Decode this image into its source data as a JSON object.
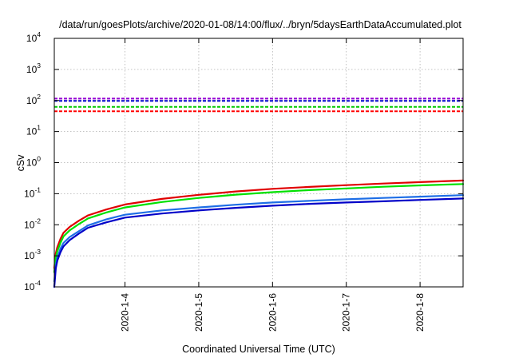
{
  "chart_data": {
    "type": "line",
    "title": "/data/run/goesPlots/archive/2020-01-08/14:00/flux/../bryn/5daysEarthDataAccumulated.plot",
    "xlabel": "Coordinated Universal Time (UTC)",
    "ylabel": "cSv",
    "y_scale": "log",
    "ylim": [
      0.0001,
      10000
    ],
    "y_ticks": [
      {
        "value": 0.0001,
        "base": "10",
        "exp": "-4"
      },
      {
        "value": 0.001,
        "base": "10",
        "exp": "-3"
      },
      {
        "value": 0.01,
        "base": "10",
        "exp": "-2"
      },
      {
        "value": 0.1,
        "base": "10",
        "exp": "-1"
      },
      {
        "value": 1,
        "base": "10",
        "exp": "0"
      },
      {
        "value": 10,
        "base": "10",
        "exp": "1"
      },
      {
        "value": 100,
        "base": "10",
        "exp": "2"
      },
      {
        "value": 1000,
        "base": "10",
        "exp": "3"
      },
      {
        "value": 10000,
        "base": "10",
        "exp": "4"
      }
    ],
    "xlim": [
      "2020-01-03 01:00",
      "2020-01-08 14:00"
    ],
    "x_ticks": [
      {
        "value": "2020-01-04 00:00",
        "label": "2020-1-4"
      },
      {
        "value": "2020-01-05 00:00",
        "label": "2020-1-5"
      },
      {
        "value": "2020-01-06 00:00",
        "label": "2020-1-6"
      },
      {
        "value": "2020-01-07 00:00",
        "label": "2020-1-7"
      },
      {
        "value": "2020-01-08 00:00",
        "label": "2020-1-8"
      }
    ],
    "grid": true,
    "series": [
      {
        "color": "#9400d3",
        "style": "dashed",
        "x": [
          "2020-01-03 01:00",
          "2020-01-08 14:00"
        ],
        "y": [
          115,
          115
        ]
      },
      {
        "color": "#0000cd",
        "style": "dashed",
        "x": [
          "2020-01-03 01:00",
          "2020-01-08 14:00"
        ],
        "y": [
          97,
          97
        ]
      },
      {
        "color": "#00c800",
        "style": "dashed",
        "x": [
          "2020-01-03 01:00",
          "2020-01-08 14:00"
        ],
        "y": [
          62,
          62
        ]
      },
      {
        "color": "#ff0000",
        "style": "dashed",
        "x": [
          "2020-01-03 01:00",
          "2020-01-08 14:00"
        ],
        "y": [
          45,
          45
        ]
      },
      {
        "color": "#e00000",
        "style": "solid",
        "x": [
          "2020-01-03 01:00",
          "2020-01-03 01:30",
          "2020-01-03 02:00",
          "2020-01-03 03:00",
          "2020-01-03 04:00",
          "2020-01-03 06:00",
          "2020-01-03 09:00",
          "2020-01-03 12:00",
          "2020-01-03 18:00",
          "2020-01-04 00:00",
          "2020-01-04 12:00",
          "2020-01-05 00:00",
          "2020-01-05 12:00",
          "2020-01-06 00:00",
          "2020-01-06 12:00",
          "2020-01-07 00:00",
          "2020-01-07 12:00",
          "2020-01-08 00:00",
          "2020-01-08 14:00"
        ],
        "y": [
          0.0004,
          0.0012,
          0.0019,
          0.0035,
          0.0055,
          0.0085,
          0.0135,
          0.02,
          0.031,
          0.045,
          0.068,
          0.092,
          0.118,
          0.143,
          0.165,
          0.188,
          0.212,
          0.235,
          0.265
        ]
      },
      {
        "color": "#00e000",
        "style": "solid",
        "x": [
          "2020-01-03 01:00",
          "2020-01-03 01:30",
          "2020-01-03 02:00",
          "2020-01-03 03:00",
          "2020-01-03 04:00",
          "2020-01-03 06:00",
          "2020-01-03 09:00",
          "2020-01-03 12:00",
          "2020-01-03 18:00",
          "2020-01-04 00:00",
          "2020-01-04 12:00",
          "2020-01-05 00:00",
          "2020-01-05 12:00",
          "2020-01-06 00:00",
          "2020-01-06 12:00",
          "2020-01-07 00:00",
          "2020-01-07 12:00",
          "2020-01-08 00:00",
          "2020-01-08 14:00"
        ],
        "y": [
          0.0003,
          0.0009,
          0.0014,
          0.0026,
          0.0042,
          0.0066,
          0.0105,
          0.016,
          0.025,
          0.036,
          0.054,
          0.073,
          0.093,
          0.112,
          0.13,
          0.148,
          0.167,
          0.185,
          0.205
        ]
      },
      {
        "color": "#1e6ee6",
        "style": "solid",
        "x": [
          "2020-01-03 01:00",
          "2020-01-03 01:30",
          "2020-01-03 02:00",
          "2020-01-03 03:00",
          "2020-01-03 04:00",
          "2020-01-03 06:00",
          "2020-01-03 09:00",
          "2020-01-03 12:00",
          "2020-01-03 18:00",
          "2020-01-04 00:00",
          "2020-01-04 12:00",
          "2020-01-05 00:00",
          "2020-01-05 12:00",
          "2020-01-06 00:00",
          "2020-01-06 12:00",
          "2020-01-07 00:00",
          "2020-01-07 12:00",
          "2020-01-08 00:00",
          "2020-01-08 14:00"
        ],
        "y": [
          0.00015,
          0.0005,
          0.0009,
          0.0017,
          0.0026,
          0.004,
          0.0062,
          0.0095,
          0.015,
          0.021,
          0.029,
          0.036,
          0.044,
          0.052,
          0.059,
          0.066,
          0.073,
          0.08,
          0.09
        ]
      },
      {
        "color": "#0000c8",
        "style": "solid",
        "x": [
          "2020-01-03 01:00",
          "2020-01-03 01:30",
          "2020-01-03 02:00",
          "2020-01-03 03:00",
          "2020-01-03 04:00",
          "2020-01-03 06:00",
          "2020-01-03 09:00",
          "2020-01-03 12:00",
          "2020-01-03 18:00",
          "2020-01-04 00:00",
          "2020-01-04 12:00",
          "2020-01-05 00:00",
          "2020-01-05 12:00",
          "2020-01-06 00:00",
          "2020-01-06 12:00",
          "2020-01-07 00:00",
          "2020-01-07 12:00",
          "2020-01-08 00:00",
          "2020-01-08 14:00"
        ],
        "y": [
          0.0001,
          0.0004,
          0.0007,
          0.0013,
          0.002,
          0.0032,
          0.0052,
          0.008,
          0.012,
          0.017,
          0.023,
          0.029,
          0.035,
          0.041,
          0.047,
          0.052,
          0.057,
          0.063,
          0.07
        ]
      }
    ]
  }
}
